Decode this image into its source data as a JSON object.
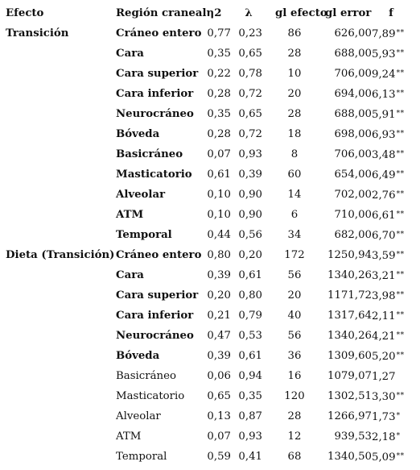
{
  "header": {
    "effect": "Efecto",
    "region": "Región craneal",
    "eta": "η2",
    "lambda": "λ",
    "gl_effect": "gl efecto",
    "gl_error": "gl error",
    "f": "f"
  },
  "rows": [
    {
      "effect": "Transición",
      "region": "Cráneo entero",
      "eta": "0,77",
      "lambda": "0,23",
      "gl": "86",
      "err": "626,00",
      "f": "7,89",
      "sig": "**",
      "bold": true
    },
    {
      "effect": "",
      "region": "Cara",
      "eta": "0,35",
      "lambda": "0,65",
      "gl": "28",
      "err": "688,00",
      "f": "5,93",
      "sig": "**",
      "bold": true
    },
    {
      "effect": "",
      "region": "Cara superior",
      "eta": "0,22",
      "lambda": "0,78",
      "gl": "10",
      "err": "706,00",
      "f": "9,24",
      "sig": "**",
      "bold": true
    },
    {
      "effect": "",
      "region": "Cara inferior",
      "eta": "0,28",
      "lambda": "0,72",
      "gl": "20",
      "err": "694,00",
      "f": "6,13",
      "sig": "**",
      "bold": true
    },
    {
      "effect": "",
      "region": "Neurocráneo",
      "eta": "0,35",
      "lambda": "0,65",
      "gl": "28",
      "err": "688,00",
      "f": "5,91",
      "sig": "**",
      "bold": true
    },
    {
      "effect": "",
      "region": "Bóveda",
      "eta": "0,28",
      "lambda": "0,72",
      "gl": "18",
      "err": "698,00",
      "f": "6,93",
      "sig": "**",
      "bold": true
    },
    {
      "effect": "",
      "region": "Basicráneo",
      "eta": "0,07",
      "lambda": "0,93",
      "gl": "8",
      "err": "706,00",
      "f": "3,48",
      "sig": "**",
      "bold": true
    },
    {
      "effect": "",
      "region": "Masticatorio",
      "eta": "0,61",
      "lambda": "0,39",
      "gl": "60",
      "err": "654,00",
      "f": "6,49",
      "sig": "**",
      "bold": true
    },
    {
      "effect": "",
      "region": "Alveolar",
      "eta": "0,10",
      "lambda": "0,90",
      "gl": "14",
      "err": "702,00",
      "f": "2,76",
      "sig": "**",
      "bold": true
    },
    {
      "effect": "",
      "region": "ATM",
      "eta": "0,10",
      "lambda": "0,90",
      "gl": "6",
      "err": "710,00",
      "f": "6,61",
      "sig": "**",
      "bold": true
    },
    {
      "effect": "",
      "region": "Temporal",
      "eta": "0,44",
      "lambda": "0,56",
      "gl": "34",
      "err": "682,00",
      "f": "6,70",
      "sig": "**",
      "bold": true
    },
    {
      "effect": "Dieta (Transición)",
      "region": "Cráneo entero",
      "eta": "0,80",
      "lambda": "0,20",
      "gl": "172",
      "err": "1250,94",
      "f": "3,59",
      "sig": "**",
      "bold": true
    },
    {
      "effect": "",
      "region": "Cara",
      "eta": "0,39",
      "lambda": "0,61",
      "gl": "56",
      "err": "1340,26",
      "f": "3,21",
      "sig": "**",
      "bold": true
    },
    {
      "effect": "",
      "region": "Cara superior",
      "eta": "0,20",
      "lambda": "0,80",
      "gl": "20",
      "err": "1171,72",
      "f": "3,98",
      "sig": "**",
      "bold": true
    },
    {
      "effect": "",
      "region": "Cara inferior",
      "eta": "0,21",
      "lambda": "0,79",
      "gl": "40",
      "err": "1317,64",
      "f": "2,11",
      "sig": "**",
      "bold": true
    },
    {
      "effect": "",
      "region": "Neurocráneo",
      "eta": "0,47",
      "lambda": "0,53",
      "gl": "56",
      "err": "1340,26",
      "f": "4,21",
      "sig": "**",
      "bold": true
    },
    {
      "effect": "",
      "region": "Bóveda",
      "eta": "0,39",
      "lambda": "0,61",
      "gl": "36",
      "err": "1309,60",
      "f": "5,20",
      "sig": "**",
      "bold": true
    },
    {
      "effect": "",
      "region": "Basicráneo",
      "eta": "0,06",
      "lambda": "0,94",
      "gl": "16",
      "err": "1079,07",
      "f": "1,27",
      "sig": "",
      "bold": false
    },
    {
      "effect": "",
      "region": "Masticatorio",
      "eta": "0,65",
      "lambda": "0,35",
      "gl": "120",
      "err": "1302,51",
      "f": "3,30",
      "sig": "**",
      "bold": false
    },
    {
      "effect": "",
      "region": "Alveolar",
      "eta": "0,13",
      "lambda": "0,87",
      "gl": "28",
      "err": "1266,97",
      "f": "1,73",
      "sig": "*",
      "bold": false
    },
    {
      "effect": "",
      "region": "ATM",
      "eta": "0,07",
      "lambda": "0,93",
      "gl": "12",
      "err": "939,53",
      "f": "2,18",
      "sig": "*",
      "bold": false
    },
    {
      "effect": "",
      "region": "Temporal",
      "eta": "0,59",
      "lambda": "0,41",
      "gl": "68",
      "err": "1340,50",
      "f": "5,09",
      "sig": "**",
      "bold": false
    }
  ]
}
